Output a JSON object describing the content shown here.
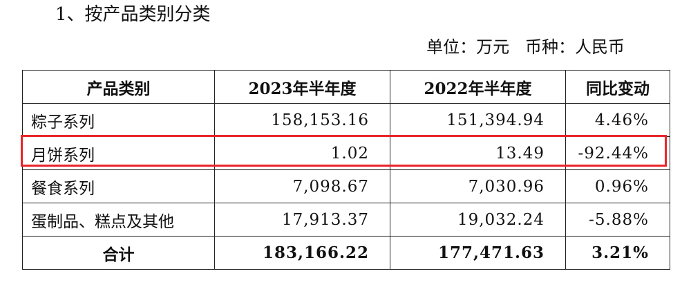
{
  "heading": "1、按产品类别分类",
  "unit_line": "单位：万元   币种：人民币",
  "table": {
    "headers": [
      "产品类别",
      "2023年半年度",
      "2022年半年度",
      "同比变动"
    ],
    "rows": [
      {
        "category": "粽子系列",
        "h2023": "158,153.16",
        "h2022": "151,394.94",
        "yoy": "4.46%"
      },
      {
        "category": "月饼系列",
        "h2023": "1.02",
        "h2022": "13.49",
        "yoy": "-92.44%"
      },
      {
        "category": "餐食系列",
        "h2023": "7,098.67",
        "h2022": "7,030.96",
        "yoy": "0.96%"
      },
      {
        "category": "蛋制品、糕点及其他",
        "h2023": "17,913.37",
        "h2022": "19,032.24",
        "yoy": "-5.88%"
      }
    ],
    "total": {
      "category": "合计",
      "h2023": "183,166.22",
      "h2022": "177,471.63",
      "yoy": "3.21%"
    }
  },
  "highlight_color": "#e8262a"
}
